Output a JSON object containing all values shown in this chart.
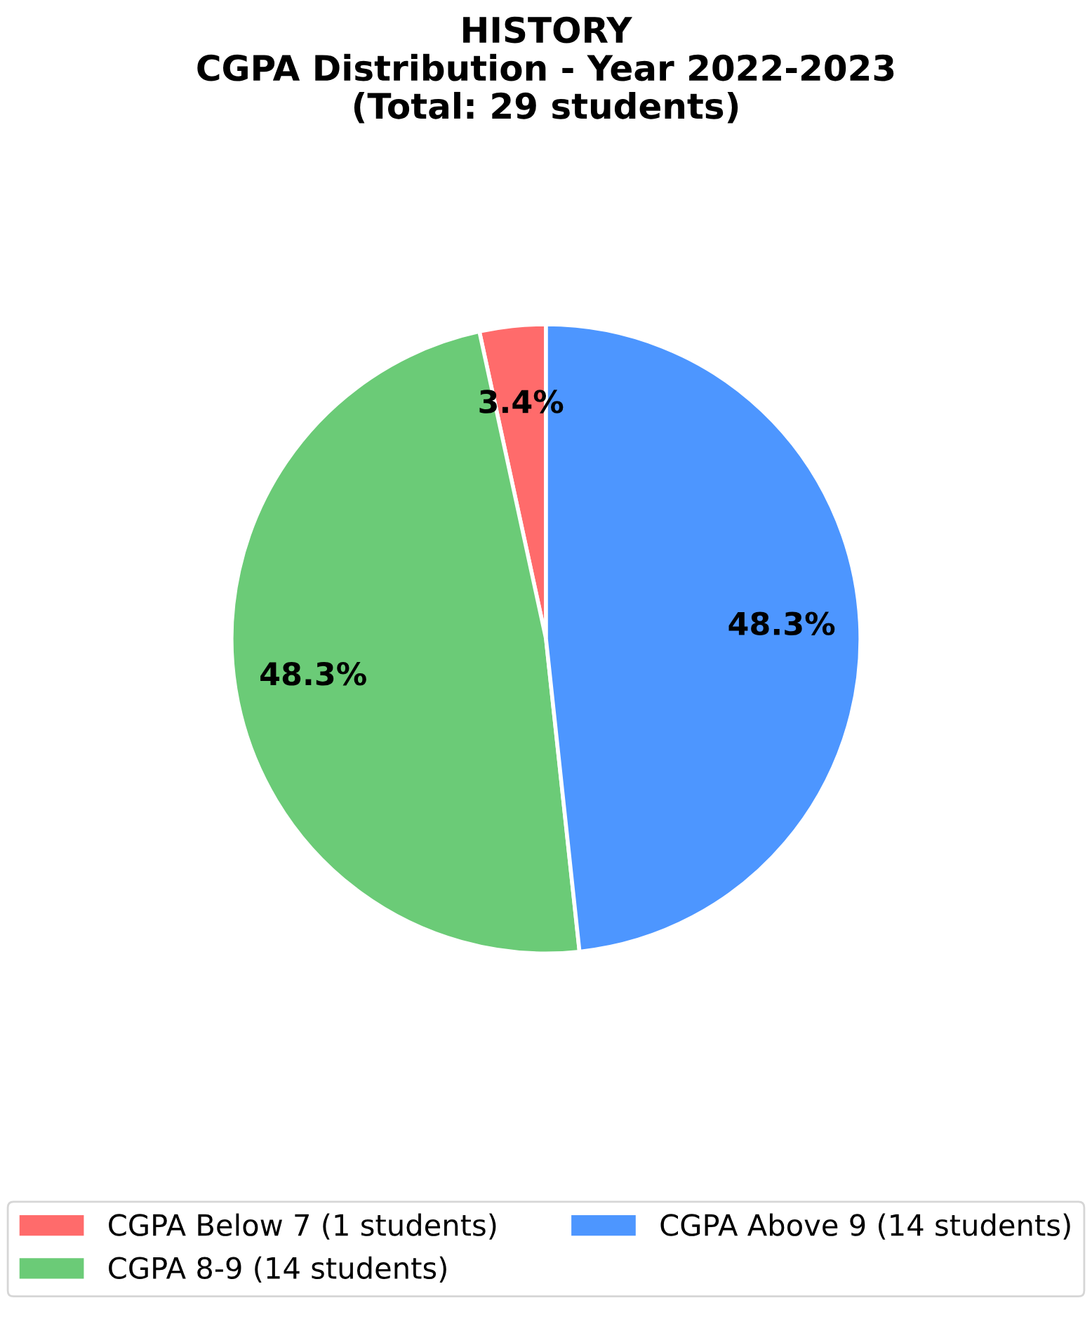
{
  "chart_data": {
    "type": "pie",
    "title": "HISTORY\nCGPA Distribution - Year 2022-2023\n(Total: 29 students)",
    "categories": [
      "CGPA Below 7 (1 students)",
      "CGPA 8-9 (14 students)",
      "CGPA Above 9 (14 students)"
    ],
    "values": [
      3.4,
      48.3,
      48.3
    ],
    "colors": [
      "#ff6b6b",
      "#6bcb77",
      "#4d96ff"
    ],
    "value_labels": [
      "3.4%",
      "48.3%",
      "48.3%"
    ],
    "legend": "bottom"
  }
}
